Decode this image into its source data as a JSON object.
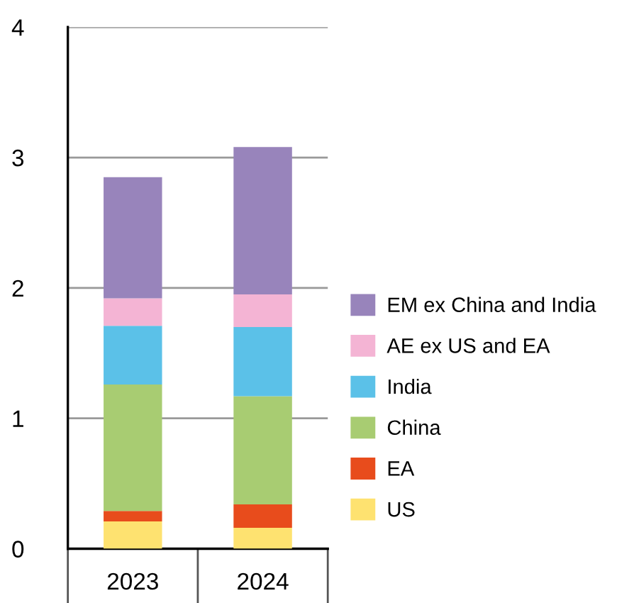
{
  "chart_data": {
    "type": "bar",
    "stacked": true,
    "categories": [
      "2023",
      "2024"
    ],
    "series": [
      {
        "name": "US",
        "color": "#fee270",
        "values": [
          0.21,
          0.16
        ]
      },
      {
        "name": "EA",
        "color": "#e84c1c",
        "values": [
          0.08,
          0.18
        ]
      },
      {
        "name": "China",
        "color": "#a8cc72",
        "values": [
          0.97,
          0.83
        ]
      },
      {
        "name": "India",
        "color": "#5bc1e8",
        "values": [
          0.45,
          0.53
        ]
      },
      {
        "name": "AE ex US and EA",
        "color": "#f4b4d4",
        "values": [
          0.21,
          0.25
        ]
      },
      {
        "name": "EM ex China and India",
        "color": "#9884bb",
        "values": [
          0.93,
          1.13
        ]
      }
    ],
    "ylim": [
      0,
      4
    ],
    "yticks": [
      0,
      1,
      2,
      3,
      4
    ],
    "grid": "y",
    "legend": "right"
  }
}
